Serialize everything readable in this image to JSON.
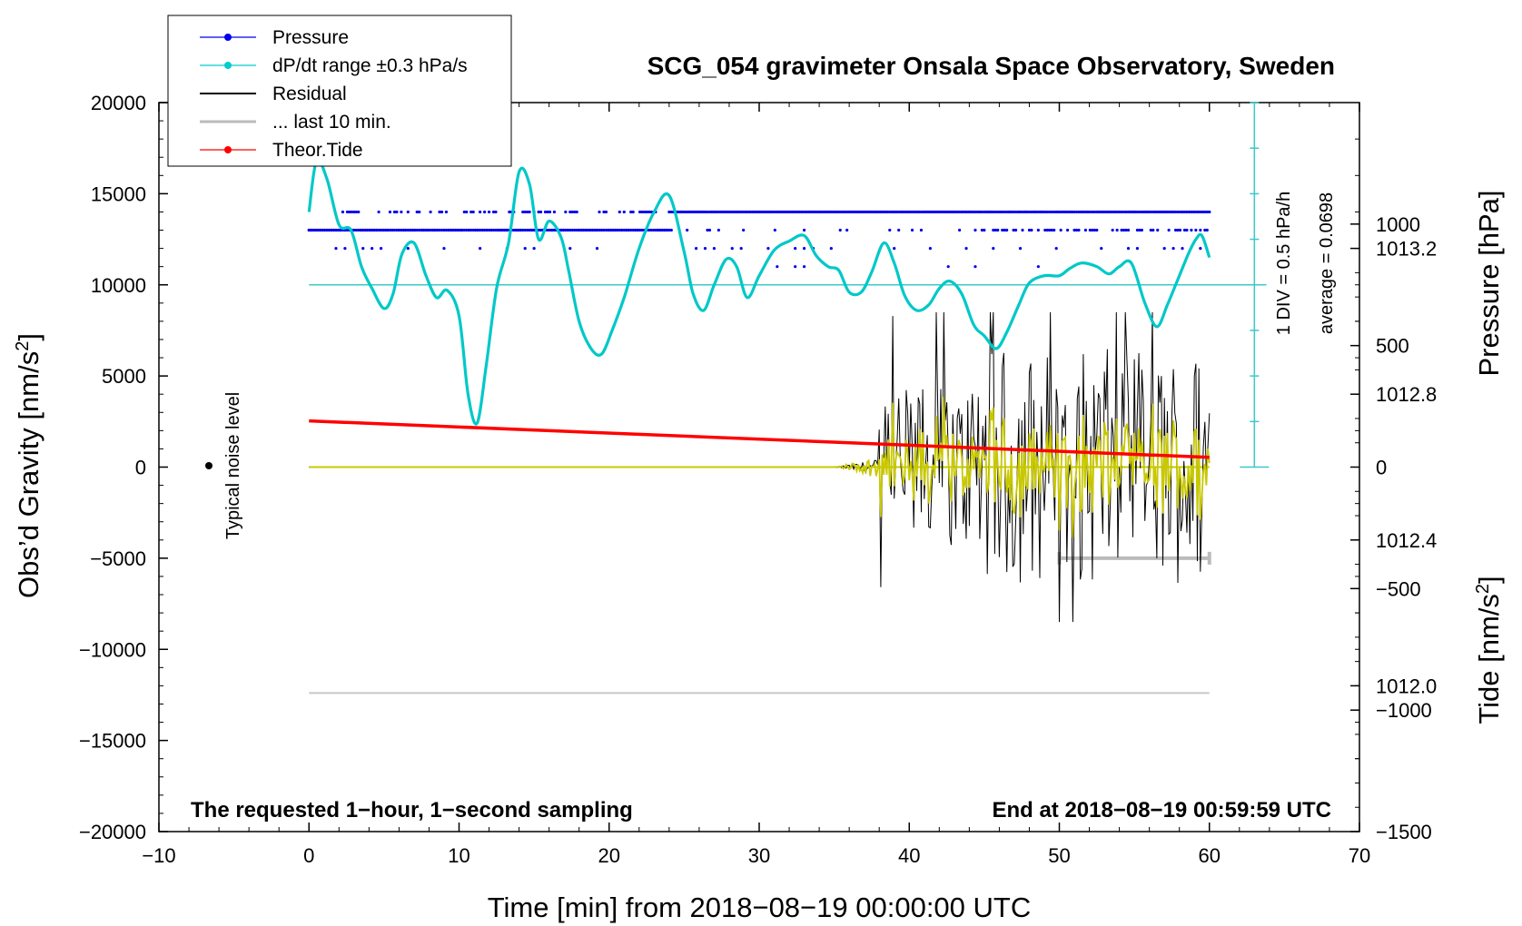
{
  "chart_data": {
    "type": "line",
    "title": "SCG_054 gravimeter Onsala Space Observatory, Sweden",
    "xlabel": "Time [min] from 2018−08−19 00:00:00 UTC",
    "ylabel_left": "Obs’d Gravity [nm/s²]",
    "ylabel_pressure": "Pressure [hPa]",
    "ylabel_tide": "Tide [nm/s²]",
    "xlim": [
      -10,
      70
    ],
    "ylim_left": [
      -20000,
      20000
    ],
    "pressure_range": [
      1011.6,
      1013.6
    ],
    "tide_range": [
      -1500,
      1500
    ],
    "x_ticks": [
      "−10",
      "0",
      "10",
      "20",
      "30",
      "40",
      "50",
      "60",
      "70"
    ],
    "y_ticks_left": [
      "20000",
      "15000",
      "10000",
      "5000",
      "0",
      "−5000",
      "−10000",
      "−15000",
      "−20000"
    ],
    "pressure_ticks": [
      "1013.2",
      "1012.8",
      "1012.4",
      "1012.0"
    ],
    "tide_ticks": [
      "1000",
      "500",
      "0",
      "−500",
      "−1000",
      "−1500"
    ],
    "legend": [
      {
        "label": "Pressure",
        "color": "#0000ee",
        "marker": true
      },
      {
        "label": "dP/dt range ±0.3 hPa/s",
        "color": "#00cccc",
        "marker": true
      },
      {
        "label": "Residual",
        "color": "#000000",
        "marker": false
      },
      {
        "label": "... last 10 min.",
        "color": "#bbbbbb",
        "marker": false
      },
      {
        "label": "Theor.Tide",
        "color": "#ff0000",
        "marker": true
      }
    ],
    "annotations": {
      "bottom_left": "The requested 1−hour, 1−second sampling",
      "bottom_right": "End at 2018−08−19 00:59:59 UTC",
      "noise": "Typical noise level",
      "scale_div": "1 DIV = 0.5 hPa/h",
      "scale_avg": "average = 0.0698"
    },
    "series": [
      {
        "name": "Pressure",
        "color": "#0000ee",
        "note": "quantized levels in Obs'd Gravity axis units",
        "levels": [
          14000,
          13000,
          12000,
          11000
        ]
      },
      {
        "name": "dP/dt",
        "color": "#00c8c8",
        "x": [
          0,
          0.5,
          1.2,
          2,
          2.8,
          3.5,
          4.2,
          5,
          5.6,
          6.2,
          7,
          7.8,
          8.5,
          9.2,
          10,
          10.6,
          11.2,
          11.8,
          12.5,
          13.3,
          14,
          14.7,
          15.3,
          16,
          16.8,
          17.3,
          18,
          18.8,
          19.5,
          20.2,
          21,
          22,
          23,
          24,
          25,
          25.6,
          26.3,
          27,
          27.8,
          28.5,
          29.2,
          30,
          31,
          32,
          33,
          33.8,
          34.6,
          35.3,
          36,
          36.8,
          37.5,
          38.3,
          39,
          39.7,
          40.5,
          41.3,
          42,
          42.7,
          43.5,
          44.3,
          45,
          45.8,
          46.5,
          47.3,
          48,
          49,
          50,
          50.7,
          51.5,
          52.5,
          53.3,
          54,
          54.8,
          55.7,
          56.5,
          57.2,
          58,
          58.6,
          59.1,
          59.5,
          60
        ],
        "y": [
          14000,
          16800,
          15800,
          13300,
          13000,
          11000,
          9800,
          8700,
          9500,
          11700,
          12300,
          10500,
          9300,
          9700,
          8300,
          4000,
          2400,
          5500,
          9800,
          12300,
          16200,
          15500,
          12500,
          13500,
          12600,
          10800,
          8000,
          6500,
          6200,
          7500,
          9300,
          12000,
          14000,
          14900,
          11800,
          9500,
          8600,
          10000,
          11400,
          11000,
          9300,
          10500,
          11900,
          12400,
          12700,
          11600,
          11000,
          10800,
          9600,
          9600,
          10700,
          12300,
          11200,
          9400,
          8600,
          8900,
          9800,
          10200,
          9500,
          7800,
          7200,
          6500,
          7400,
          8900,
          10100,
          10500,
          10500,
          10900,
          11200,
          11000,
          10600,
          11000,
          11200,
          9000,
          7700,
          8900,
          10500,
          11700,
          12500,
          12700,
          11500
        ]
      },
      {
        "name": "Theor.Tide",
        "color": "#ff0000",
        "x": [
          0,
          60
        ],
        "y_tide": [
          190,
          40
        ]
      },
      {
        "name": "last 10 min. marker",
        "color": "#bbbbbb",
        "x": [
          50,
          60
        ],
        "y": [
          -5000,
          -5000
        ]
      },
      {
        "name": "Residual baseline",
        "color": "#c8c8c8",
        "x": [
          0,
          60
        ],
        "y": [
          -12400,
          -12400
        ]
      },
      {
        "name": "Residual",
        "color": "#000000",
        "note": "flat near 0 until ~35 min, then oscillations growing to about ±9000 nm/s²"
      },
      {
        "name": "Residual (filtered)",
        "color": "#c8c800",
        "note": "flat near 0 until ~35 min, then oscillations about ±3000 nm/s²"
      }
    ]
  }
}
